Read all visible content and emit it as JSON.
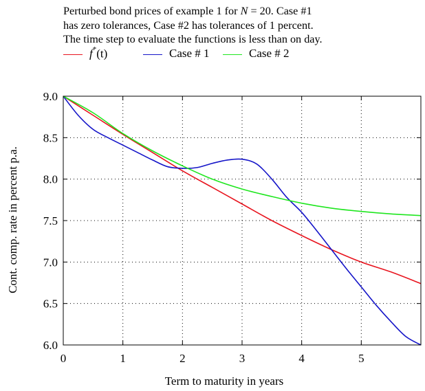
{
  "caption": {
    "line1_a": "Perturbed bond prices of example 1 for ",
    "line1_var": "N",
    "line1_b": " = 20. Case #1",
    "line2": "has zero tolerances, Case #2 has tolerances of 1 percent.",
    "line3": "The time step to evaluate the functions is less than on day."
  },
  "legend": {
    "f_main": "f",
    "f_sup": "*",
    "f_arg": "(t)",
    "case1": "Case # 1",
    "case2": "Case # 2"
  },
  "colors": {
    "f": "#e8141e",
    "case1": "#1414c8",
    "case2": "#1ee61e"
  },
  "chart_data": {
    "type": "line",
    "xlabel": "Term to maturity in years",
    "ylabel": "Cont. comp. rate in percent p.a.",
    "xlim": [
      0,
      6
    ],
    "ylim": [
      6.0,
      9.0
    ],
    "xticks": [
      0,
      1,
      2,
      3,
      4,
      5
    ],
    "xtick_labels": [
      "0",
      "1",
      "2",
      "3",
      "4",
      "5"
    ],
    "yticks": [
      6.0,
      6.5,
      7.0,
      7.5,
      8.0,
      8.5,
      9.0
    ],
    "ytick_labels": [
      "6.0",
      "6.5",
      "7.0",
      "7.5",
      "8.0",
      "8.5",
      "9.0"
    ],
    "grid": true,
    "legend_position": "top",
    "series": [
      {
        "name": "f*(t)",
        "color": "#e8141e",
        "x": [
          0,
          0.5,
          1,
          1.5,
          2,
          2.5,
          3,
          3.5,
          4,
          4.5,
          5,
          5.5,
          6
        ],
        "y": [
          9.0,
          8.77,
          8.54,
          8.32,
          8.1,
          7.9,
          7.7,
          7.5,
          7.32,
          7.15,
          7.0,
          6.88,
          6.74
        ]
      },
      {
        "name": "Case # 1",
        "color": "#1414c8",
        "x": [
          0,
          0.25,
          0.5,
          0.75,
          1,
          1.25,
          1.5,
          1.75,
          2,
          2.25,
          2.5,
          2.75,
          3,
          3.25,
          3.5,
          3.75,
          4,
          4.25,
          4.5,
          4.75,
          5,
          5.25,
          5.5,
          5.75,
          6
        ],
        "y": [
          9.0,
          8.77,
          8.6,
          8.5,
          8.41,
          8.32,
          8.23,
          8.15,
          8.13,
          8.14,
          8.19,
          8.23,
          8.24,
          8.18,
          8.0,
          7.78,
          7.6,
          7.38,
          7.15,
          6.92,
          6.7,
          6.48,
          6.28,
          6.1,
          6.0
        ]
      },
      {
        "name": "Case # 2",
        "color": "#1ee61e",
        "x": [
          0,
          0.5,
          1,
          1.5,
          2,
          2.5,
          3,
          3.5,
          4,
          4.5,
          5,
          5.5,
          6
        ],
        "y": [
          9.0,
          8.8,
          8.55,
          8.34,
          8.16,
          8.0,
          7.88,
          7.79,
          7.71,
          7.65,
          7.61,
          7.58,
          7.56
        ]
      }
    ]
  }
}
